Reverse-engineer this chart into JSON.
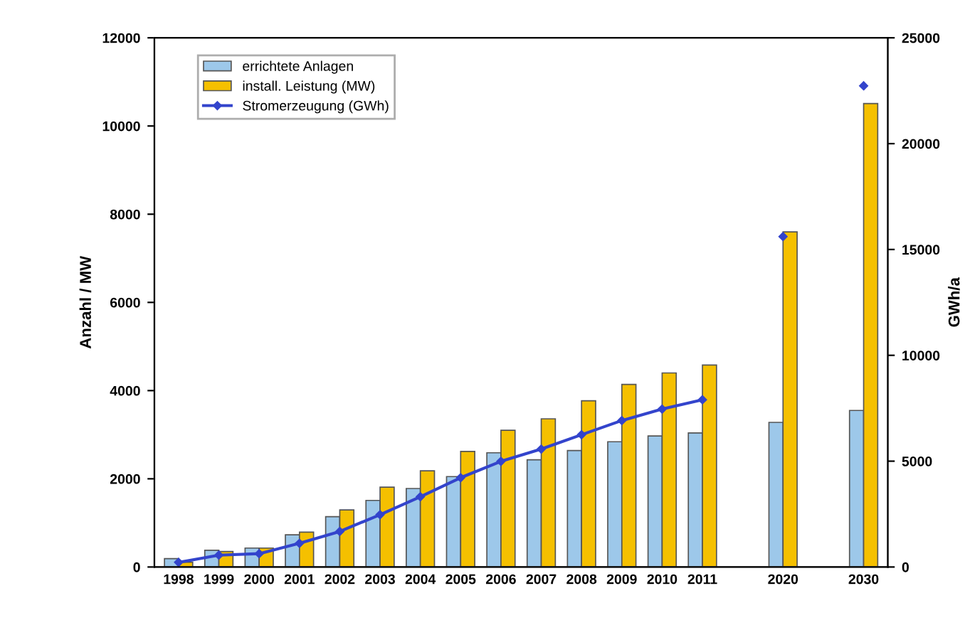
{
  "chart_data": {
    "type": "bar",
    "ylabel": "Anzahl / MW",
    "y2label": "GWh/a",
    "categories": [
      "1998",
      "1999",
      "2000",
      "2001",
      "2002",
      "2003",
      "2004",
      "2005",
      "2006",
      "2007",
      "2008",
      "2009",
      "2010",
      "2011",
      null,
      "2020",
      null,
      "2030"
    ],
    "series": [
      {
        "name": "errichtete Anlagen",
        "color": "#9dc8ea",
        "values": [
          190,
          380,
          430,
          730,
          1140,
          1510,
          1780,
          2050,
          2590,
          2430,
          2640,
          2840,
          2970,
          3040,
          null,
          3280,
          null,
          3550
        ]
      },
      {
        "name": "install. Leistung (MW)",
        "color": "#f5c000",
        "values": [
          110,
          350,
          430,
          790,
          1295,
          1810,
          2180,
          2620,
          3100,
          3360,
          3770,
          4140,
          4400,
          4580,
          null,
          7600,
          null,
          10510
        ]
      },
      {
        "name": "Stromerzeugung (GWh)",
        "type": "line",
        "axis": "y2",
        "color": "#3344cc",
        "marker": "diamond",
        "values": [
          220,
          560,
          630,
          1120,
          1680,
          2470,
          3320,
          4220,
          4990,
          5570,
          6250,
          6920,
          7460,
          7900,
          null,
          15610,
          null,
          22730
        ]
      }
    ],
    "ylim": [
      0,
      12000
    ],
    "yticks": [
      0,
      2000,
      4000,
      6000,
      8000,
      10000,
      12000
    ],
    "y2lim": [
      0,
      25000
    ],
    "y2ticks": [
      0,
      5000,
      10000,
      15000,
      20000,
      25000
    ],
    "legend": "top left",
    "grid": false
  }
}
